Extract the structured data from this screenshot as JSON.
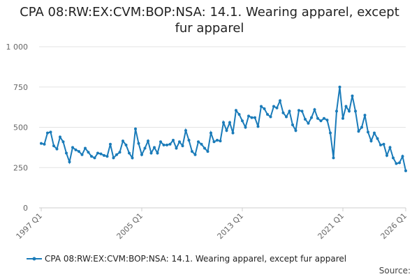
{
  "chart_data": {
    "type": "line",
    "title": "CPA 08:RW:EX:CVM:BOP:NSA: 14.1. Wearing apparel, except fur apparel",
    "source": "Source:",
    "categories": [
      "1997 Q1",
      null,
      null,
      null,
      null,
      null,
      null,
      null,
      null,
      null,
      null,
      null,
      null,
      null,
      null,
      null,
      null,
      null,
      null,
      null,
      null,
      null,
      null,
      null,
      null,
      null,
      null,
      null,
      null,
      null,
      null,
      null,
      "2005 Q1",
      null,
      null,
      null,
      null,
      null,
      null,
      null,
      null,
      null,
      null,
      null,
      null,
      null,
      null,
      null,
      null,
      null,
      null,
      null,
      null,
      null,
      null,
      null,
      null,
      null,
      null,
      null,
      null,
      null,
      null,
      null,
      "2013 Q1",
      null,
      null,
      null,
      null,
      null,
      null,
      null,
      null,
      null,
      null,
      null,
      null,
      null,
      null,
      null,
      null,
      null,
      null,
      null,
      null,
      null,
      null,
      null,
      null,
      null,
      null,
      null,
      null,
      null,
      null,
      null,
      "2021 Q1",
      null,
      null,
      null,
      null,
      null,
      null,
      null,
      null,
      null,
      null,
      null,
      null,
      null,
      null,
      null,
      null,
      null,
      null,
      null,
      "2026 Q1"
    ],
    "series": [
      {
        "name": "CPA 08:RW:EX:CVM:BOP:NSA: 14.1. Wearing apparel, except fur apparel",
        "color": "#1a7bb9",
        "values": [
          400,
          395,
          465,
          470,
          385,
          365,
          440,
          410,
          340,
          285,
          375,
          360,
          350,
          330,
          370,
          345,
          320,
          310,
          340,
          335,
          325,
          320,
          395,
          310,
          330,
          345,
          415,
          390,
          340,
          310,
          490,
          400,
          330,
          370,
          415,
          340,
          375,
          340,
          410,
          390,
          390,
          395,
          420,
          370,
          410,
          385,
          480,
          420,
          350,
          330,
          410,
          395,
          370,
          350,
          465,
          410,
          420,
          415,
          530,
          480,
          530,
          465,
          605,
          580,
          540,
          500,
          570,
          560,
          560,
          505,
          630,
          615,
          580,
          565,
          630,
          620,
          665,
          590,
          565,
          600,
          515,
          480,
          605,
          600,
          550,
          525,
          560,
          610,
          555,
          540,
          555,
          545,
          465,
          310,
          600,
          750,
          555,
          630,
          600,
          695,
          600,
          475,
          500,
          575,
          470,
          415,
          465,
          430,
          390,
          395,
          325,
          375,
          310,
          275,
          280,
          320,
          230
        ]
      }
    ],
    "ylim": [
      0,
      1000
    ],
    "yticks": [
      0,
      250,
      500,
      750,
      {
        "value": 1000,
        "label": "1 000"
      }
    ],
    "grid": true
  }
}
